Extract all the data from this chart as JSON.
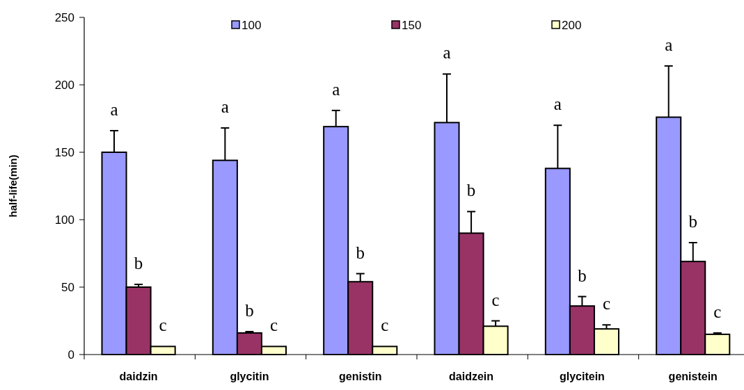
{
  "chart_data": {
    "type": "bar",
    "ylabel": "half-life(min)",
    "categories": [
      "daidzin",
      "glycitin",
      "genistin",
      "daidzein",
      "glycitein",
      "genistein"
    ],
    "series": [
      {
        "name": "100",
        "color": "#9999ff",
        "values": [
          150,
          144,
          169,
          172,
          138,
          176
        ],
        "errors": [
          16,
          24,
          12,
          36,
          32,
          38
        ]
      },
      {
        "name": "150",
        "color": "#993366",
        "values": [
          50,
          16,
          54,
          90,
          36,
          69
        ],
        "errors": [
          2,
          1,
          6,
          16,
          7,
          14
        ]
      },
      {
        "name": "200",
        "color": "#ffffcc",
        "values": [
          6,
          6,
          6,
          21,
          19,
          15
        ],
        "errors": [
          null,
          null,
          null,
          4,
          3,
          1
        ]
      }
    ],
    "ylim": [
      0,
      250
    ],
    "yticks": [
      0,
      50,
      100,
      150,
      200,
      250
    ],
    "grid": false,
    "legend": "top",
    "annotations": [
      "a",
      "b",
      "c",
      "a",
      "b",
      "c",
      "a",
      "b",
      "c",
      "a",
      "b",
      "c",
      "a",
      "b",
      "c",
      "a",
      "b",
      "c"
    ]
  }
}
